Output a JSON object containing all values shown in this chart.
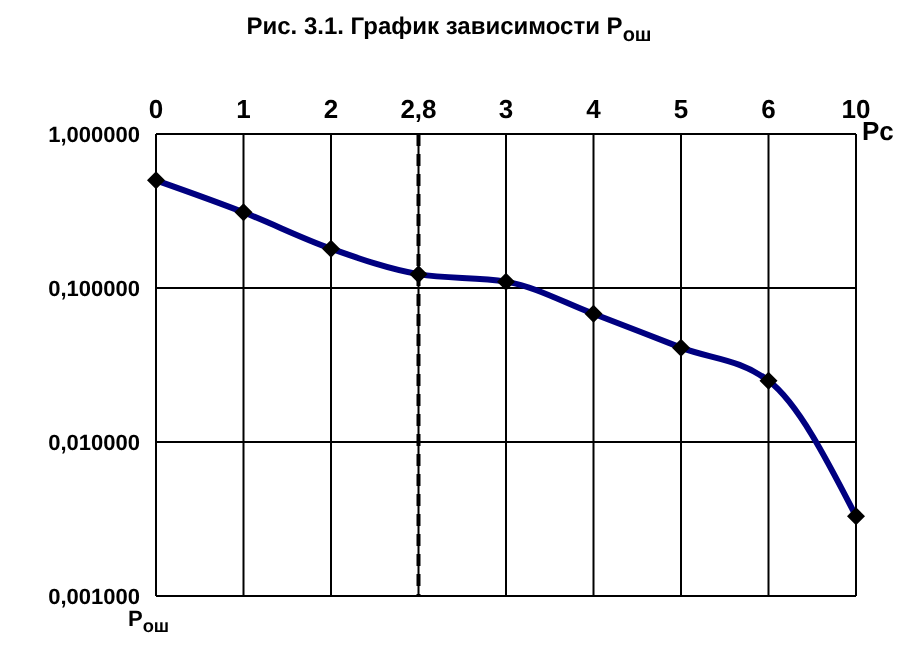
{
  "chart_data": {
    "type": "line",
    "title": "Рис. 3.1. График зависимости P$_{ош}$",
    "xlabel": "Pc",
    "ylabel": "P$_{ош}$",
    "categories": [
      "0",
      "1",
      "2",
      "2,8",
      "3",
      "4",
      "5",
      "6",
      "10"
    ],
    "series": [
      {
        "color": "#000080",
        "values": [
          0.5,
          0.31,
          0.18,
          0.123,
          0.11,
          0.068,
          0.041,
          0.025,
          0.0033
        ]
      }
    ],
    "log": "y",
    "ylim": [
      0.001,
      1
    ],
    "yticks": [
      {
        "value": 1,
        "label": "1,000000"
      },
      {
        "value": 0.1,
        "label": "0,100000"
      },
      {
        "value": 0.01,
        "label": "0,010000"
      },
      {
        "value": 0.001,
        "label": "0,001000"
      }
    ],
    "ref_lines": [
      {
        "axis": "x",
        "value": "2,8",
        "line_style": "dashed"
      }
    ],
    "grid": true,
    "marker": "diamond",
    "line_style": "solid"
  }
}
